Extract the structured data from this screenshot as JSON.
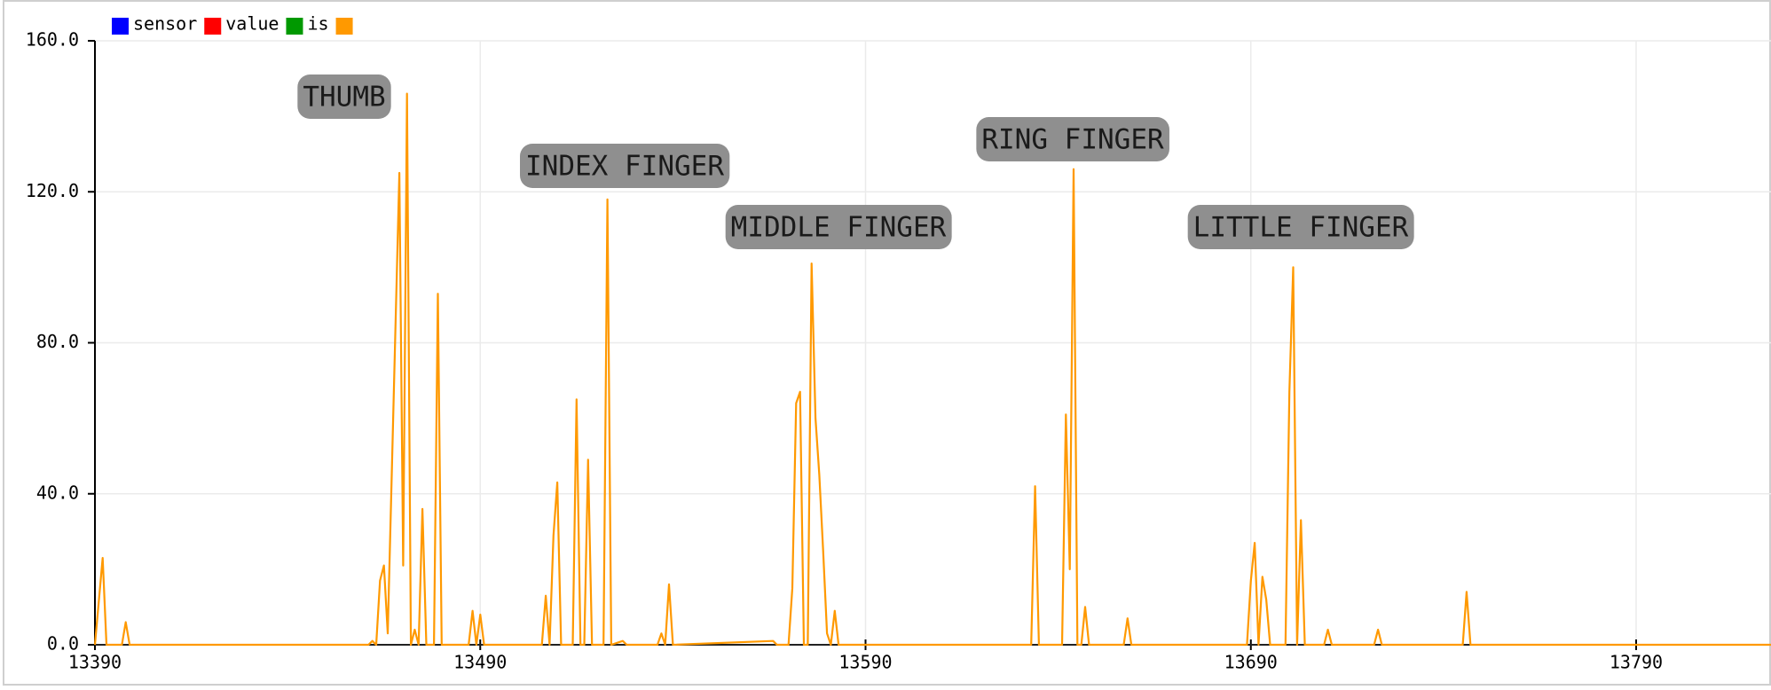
{
  "chart_data": {
    "type": "line",
    "legend": [
      {
        "name": "sensor",
        "color": "#0000ff"
      },
      {
        "name": "value",
        "color": "#ff0000"
      },
      {
        "name": "is",
        "color": "#009900"
      },
      {
        "color": "#ff9900"
      }
    ],
    "x": [
      13390,
      13392,
      13393,
      13397,
      13398,
      13399,
      13461,
      13462,
      13463,
      13464,
      13465,
      13466,
      13469,
      13470,
      13471,
      13472,
      13473,
      13474,
      13475,
      13476,
      13478,
      13479,
      13480,
      13487,
      13488,
      13489,
      13490,
      13491,
      13506,
      13507,
      13508,
      13509,
      13510,
      13511,
      13514,
      13515,
      13516,
      13517,
      13518,
      13519,
      13522,
      13523,
      13524,
      13527,
      13528,
      13536,
      13537,
      13538,
      13539,
      13540,
      13566,
      13567,
      13570,
      13571,
      13572,
      13573,
      13574,
      13575,
      13576,
      13577,
      13578,
      13579,
      13580,
      13581,
      13582,
      13583,
      13633,
      13634,
      13635,
      13641,
      13642,
      13643,
      13644,
      13645,
      13646,
      13647,
      13648,
      13657,
      13658,
      13659,
      13689,
      13690,
      13691,
      13692,
      13693,
      13694,
      13695,
      13699,
      13700,
      13701,
      13702,
      13703,
      13704,
      13709,
      13710,
      13711,
      13722,
      13723,
      13724,
      13745,
      13746,
      13747,
      13825
    ],
    "series": [
      {
        "color": "#ff9900",
        "values": [
          0,
          23,
          0,
          0,
          6,
          0,
          0,
          1,
          0,
          17,
          21,
          3,
          125,
          21,
          146,
          0,
          4,
          0,
          36,
          0,
          0,
          93,
          0,
          0,
          9,
          0,
          8,
          0,
          0,
          13,
          0,
          29,
          43,
          0,
          0,
          65,
          0,
          0,
          49,
          0,
          0,
          118,
          0,
          1,
          0,
          0,
          3,
          0,
          16,
          0,
          1,
          0,
          0,
          15,
          64,
          67,
          0,
          0,
          101,
          60,
          45,
          25,
          3,
          0,
          9,
          0,
          0,
          42,
          0,
          0,
          61,
          20,
          126,
          0,
          0,
          10,
          0,
          0,
          7,
          0,
          0,
          17,
          27,
          0,
          18,
          12,
          0,
          0,
          67,
          100,
          0,
          33,
          0,
          0,
          4,
          0,
          0,
          4,
          0,
          0,
          14,
          0,
          0
        ]
      }
    ],
    "xlim": [
      13390,
      13825
    ],
    "xticks": [
      13390,
      13490,
      13590,
      13690,
      13790
    ],
    "ylim": [
      0,
      160
    ],
    "yticks": [
      {
        "value": 0,
        "label": "0.0"
      },
      {
        "value": 40,
        "label": "40.0"
      },
      {
        "value": 80,
        "label": "80.0"
      },
      {
        "value": 120,
        "label": "120.0"
      },
      {
        "value": 160,
        "label": "160.0"
      }
    ],
    "grid": true,
    "annotations": [
      "THUMB",
      "INDEX FINGER",
      "MIDDLE FINGER",
      "RING FINGER",
      "LITTLE FINGER"
    ]
  }
}
